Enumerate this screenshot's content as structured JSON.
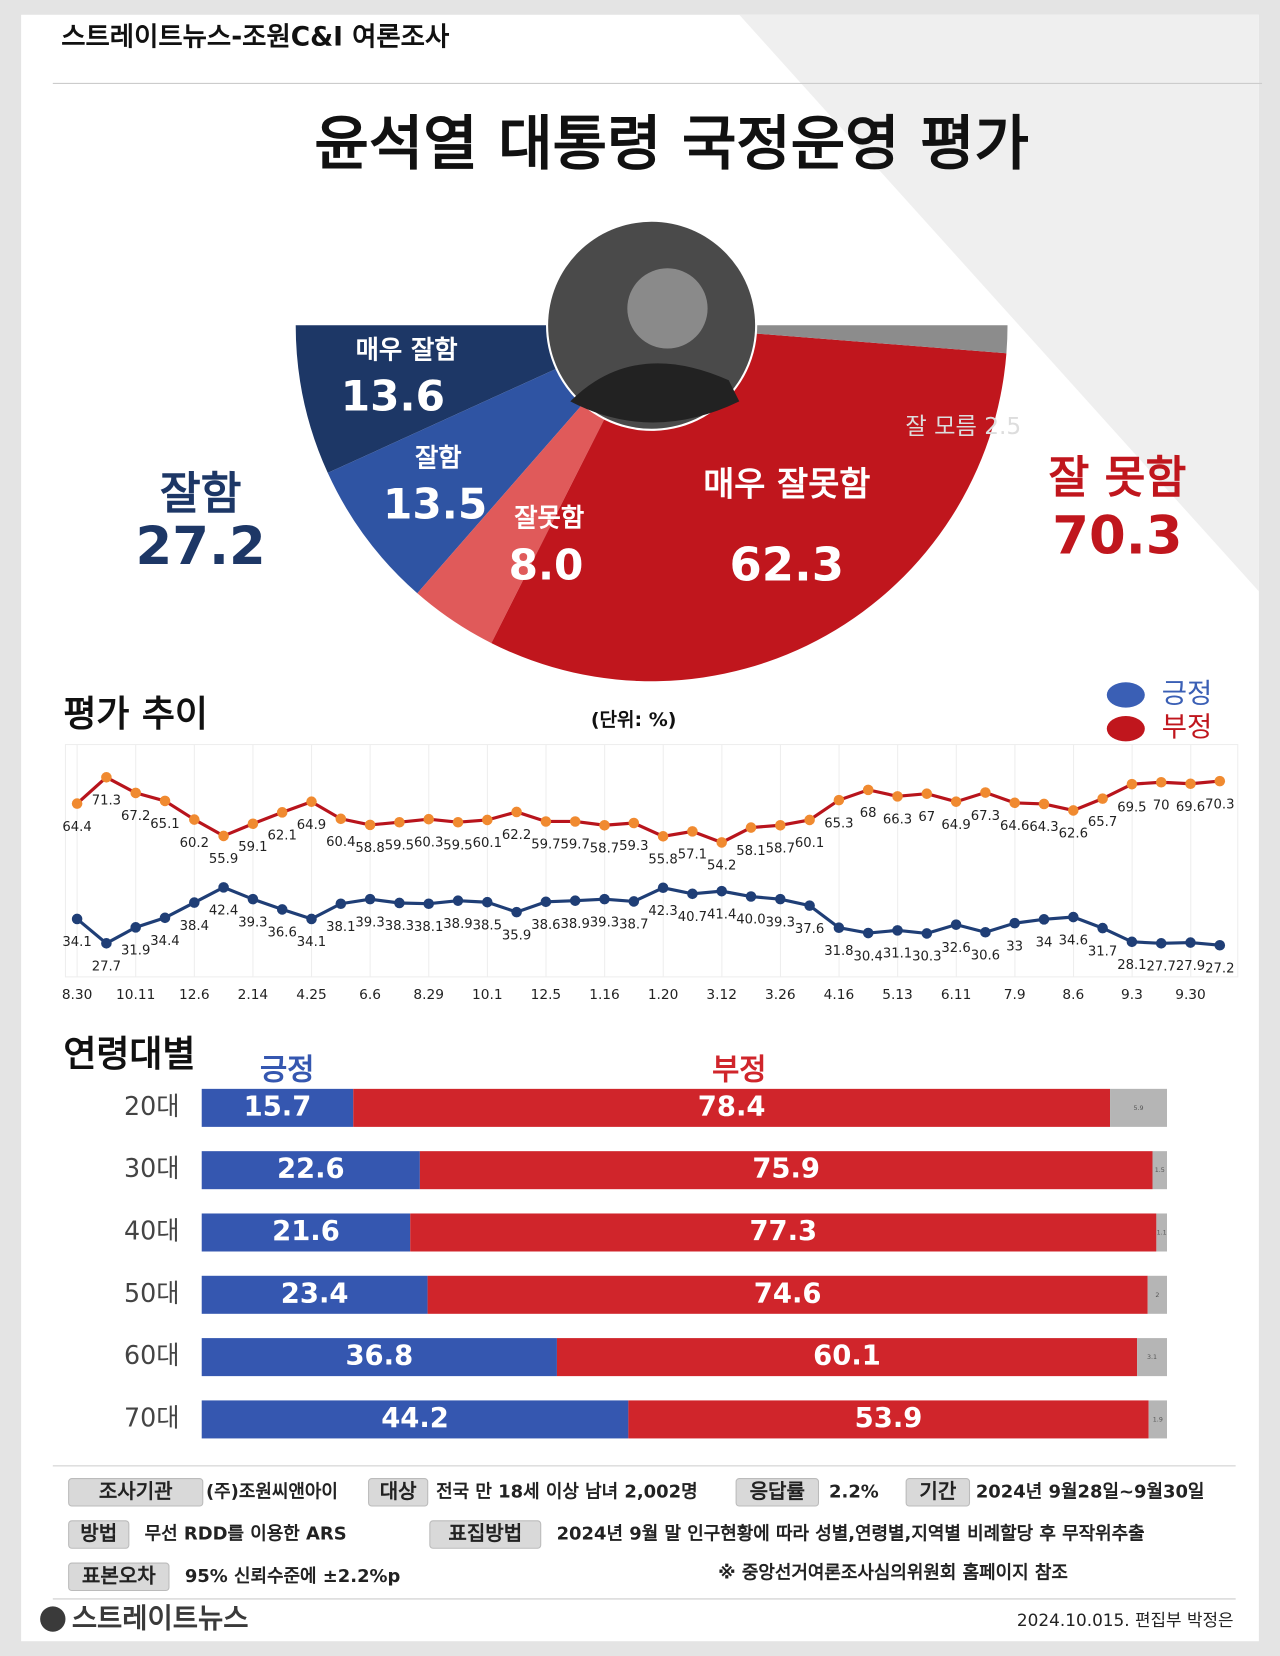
{
  "header": {
    "source": "스트레이트뉴스-조원C&I 여론조사",
    "title": "윤석열 대통령 국정운영 평가"
  },
  "chart_data": [
    {
      "type": "pie",
      "categories": [
        "매우 잘함",
        "잘함",
        "잘못함",
        "매우 잘못함",
        "잘 모름"
      ],
      "values": [
        13.6,
        13.5,
        8,
        62.3,
        2.5
      ],
      "value_labels": [
        "13.6",
        "13.5",
        "8.0",
        "62.3",
        "2.5"
      ],
      "colors": [
        "#1d3766",
        "#2f54a3",
        "#e05a5a",
        "#c0161d",
        "#8c8c8c"
      ],
      "summary": [
        {
          "label": "잘함",
          "value": "27.2",
          "color": "#1d3766"
        },
        {
          "label": "잘 못함",
          "value": "70.3",
          "color": "#c0161d"
        }
      ]
    },
    {
      "type": "line",
      "title": "평가 추이",
      "subtitle": "(단위: %)",
      "legend": "top-right",
      "categories": [
        "8.30",
        null,
        "10.11",
        null,
        "12.6",
        null,
        "2.14",
        null,
        "4.25",
        null,
        "6.6",
        null,
        "8.29",
        null,
        "10.1",
        null,
        "12.5",
        null,
        "1.16",
        null,
        "1.20",
        null,
        "3.12",
        null,
        "3.26",
        null,
        "4.16",
        null,
        "5.13",
        null,
        "6.11",
        null,
        "7.9",
        null,
        "8.6",
        null,
        "9.3",
        null,
        "9.30",
        null
      ],
      "series": [
        {
          "name": "긍정",
          "color": "#1f3e76",
          "marker_color": "#1f3e76",
          "legend_color": "#3a5fb5",
          "values": [
            34.1,
            27.7,
            31.9,
            34.4,
            38.4,
            42.4,
            39.3,
            36.6,
            34.1,
            38.1,
            39.3,
            38.3,
            38.1,
            38.9,
            38.5,
            35.9,
            38.6,
            38.9,
            39.3,
            38.7,
            42.3,
            40.7,
            41.4,
            40,
            39.3,
            37.6,
            31.8,
            30.4,
            31.1,
            30.3,
            32.6,
            30.6,
            33,
            34,
            34.6,
            31.7,
            28.1,
            27.7,
            27.9,
            27.2
          ],
          "value_labels": [
            "34.1",
            "27.7",
            "31.9",
            "34.4",
            "38.4",
            "42.4",
            "39.3",
            "36.6",
            "34.1",
            "38.1",
            "39.3",
            "38.3",
            "38.1",
            "38.9",
            "38.5",
            "35.9",
            "38.6",
            "38.9",
            "39.3",
            "38.7",
            "42.3",
            "40.7",
            "41.4",
            "40.0",
            "39.3",
            "37.6",
            "31.8",
            "30.4",
            "31.1",
            "30.3",
            "32.6",
            "30.6",
            "33",
            "34",
            "34.6",
            "31.7",
            "28.1",
            "27.7",
            "27.9",
            "27.2"
          ]
        },
        {
          "name": "부정",
          "color": "#b8141c",
          "marker_color": "#f08a30",
          "legend_color": "#c0161d",
          "values": [
            64.4,
            71.3,
            67.2,
            65.1,
            60.2,
            55.9,
            59.1,
            62.1,
            64.9,
            60.4,
            58.8,
            59.5,
            60.3,
            59.5,
            60.1,
            62.2,
            59.7,
            59.7,
            58.7,
            59.3,
            55.8,
            57.1,
            54.2,
            58.1,
            58.7,
            60.1,
            65.3,
            68,
            66.3,
            67,
            64.9,
            67.3,
            64.6,
            64.3,
            62.6,
            65.7,
            69.5,
            70,
            69.6,
            70.3
          ]
        }
      ]
    },
    {
      "type": "bar",
      "orientation": "horizontal",
      "stacked": true,
      "title": "연령대별",
      "categories": [
        "20대",
        "30대",
        "40대",
        "50대",
        "60대",
        "70대"
      ],
      "series": [
        {
          "name": "긍정",
          "color": "#3557b0",
          "values": [
            15.7,
            22.6,
            21.6,
            23.4,
            36.8,
            44.2
          ]
        },
        {
          "name": "부정",
          "color": "#d0252b",
          "values": [
            78.4,
            75.9,
            77.3,
            74.6,
            60.1,
            53.9
          ]
        },
        {
          "color": "#b5b5b5",
          "values": [
            5.9,
            1.5,
            1.1,
            2,
            3.1,
            1.9
          ]
        }
      ]
    }
  ],
  "footer": {
    "survey": [
      {
        "label": "조사기관",
        "value": "(주)조원씨앤아이"
      },
      {
        "label": "대상",
        "value": "전국 만 18세 이상 남녀 2,002명"
      },
      {
        "label": "응답률",
        "value": "2.2%"
      },
      {
        "label": "기간",
        "value": "2024년 9월28일~9월30일"
      },
      {
        "label": "방법",
        "value": "무선 RDD를 이용한 ARS"
      },
      {
        "label": "표집방법",
        "value": "2024년 9월 말 인구현황에 따라 성별,연령별,지역별 비례할당 후 무작위추출"
      },
      {
        "label": "표본오차",
        "value": "95% 신뢰수준에 ±2.2%p"
      }
    ],
    "note": "※ 중앙선거여론조사심의위원회 홈페이지 참조",
    "logo": "스트레이트뉴스",
    "credit": "2024.10.015. 편집부 박정은"
  }
}
